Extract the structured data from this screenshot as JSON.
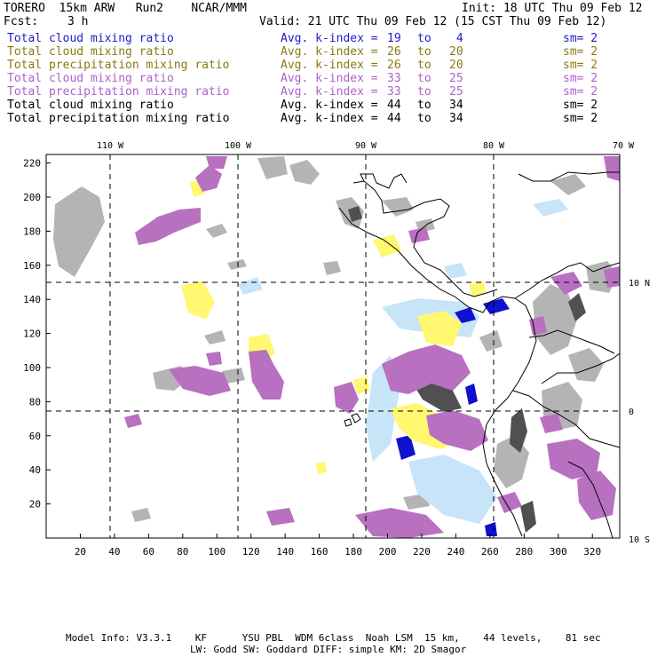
{
  "header": {
    "model": "TORERO  15km ARW   Run2    NCAR/MMM",
    "init": "Init: 18 UTC Thu 09 Feb 12",
    "fcst_label": "Fcst:",
    "fcst_value": "3 h",
    "valid": "Valid: 21 UTC Thu 09 Feb 12 (15 CST Thu 09 Feb 12)"
  },
  "legend": [
    {
      "field": "Total cloud mixing ratio",
      "k_from": "19",
      "k_to": "4",
      "sm": "sm= 2",
      "color": "#1c1cc8"
    },
    {
      "field": "Total cloud mixing ratio",
      "k_from": "26",
      "k_to": "20",
      "sm": "sm= 2",
      "color": "#8a7a10"
    },
    {
      "field": "Total precipitation mixing ratio",
      "k_from": "26",
      "k_to": "20",
      "sm": "sm= 2",
      "color": "#8a7a10"
    },
    {
      "field": "Total cloud mixing ratio",
      "k_from": "33",
      "k_to": "25",
      "sm": "sm= 2",
      "color": "#b060c8"
    },
    {
      "field": "Total precipitation mixing ratio",
      "k_from": "33",
      "k_to": "25",
      "sm": "sm= 2",
      "color": "#b060c8"
    },
    {
      "field": "Total cloud mixing ratio",
      "k_from": "44",
      "k_to": "34",
      "sm": "sm= 2",
      "color": "#000000"
    },
    {
      "field": "Total precipitation mixing ratio",
      "k_from": "44",
      "k_to": "34",
      "sm": "sm= 2",
      "color": "#000000"
    }
  ],
  "legend_avg_label": "Avg. k-index =",
  "legend_to_label": "to",
  "map": {
    "lon_labels": [
      "110 W",
      "100 W",
      "90 W",
      "80 W",
      "70 W"
    ],
    "lat_labels": [
      "10 N",
      "0",
      "10 S"
    ],
    "x_ticks": [
      "20",
      "40",
      "60",
      "80",
      "100",
      "120",
      "140",
      "160",
      "180",
      "200",
      "220",
      "240",
      "260",
      "280",
      "300",
      "320"
    ],
    "y_ticks": [
      "20",
      "40",
      "60",
      "80",
      "100",
      "120",
      "140",
      "160",
      "180",
      "200",
      "220"
    ],
    "shade_colors": {
      "gray": "#b4b4b4",
      "dark": "#505050",
      "blue": "#1010d0",
      "lightblue": "#c8e4f8",
      "yellow": "#fff870",
      "violet": "#b870c0"
    }
  },
  "footer": {
    "line1": "Model Info: V3.3.1    KF      YSU PBL  WDM 6class  Noah LSM  15 km,    44 levels,    81 sec",
    "line2": "LW: Godd SW: Goddard DIFF: simple KM: 2D Smagor"
  }
}
